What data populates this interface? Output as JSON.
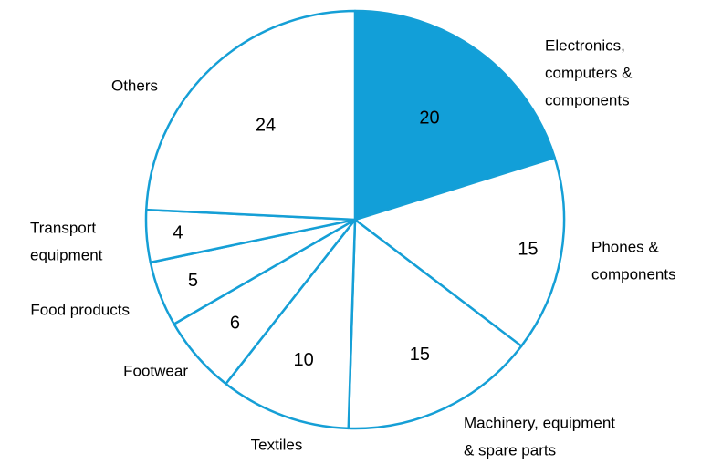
{
  "chart_data": {
    "type": "pie",
    "title": "",
    "categories": [
      "Electronics, computers & components",
      "Phones & components",
      "Machinery, equipment & spare parts",
      "Textiles",
      "Footwear",
      "Food products",
      "Transport equipment",
      "Others"
    ],
    "values": [
      20,
      15,
      15,
      10,
      6,
      5,
      4,
      24
    ],
    "highlighted": "Electronics, computers & components",
    "label_lines": [
      [
        "Electronics,",
        "computers &",
        "components"
      ],
      [
        "Phones &",
        "components"
      ],
      [
        "Machinery, equipment",
        "& spare parts"
      ],
      [
        "Textiles"
      ],
      [
        "Footwear"
      ],
      [
        "Food products"
      ],
      [
        "Transport",
        "equipment"
      ],
      [
        "Others"
      ]
    ],
    "colors": {
      "highlight_fill": "#129fd8",
      "slice_fill": "#ffffff",
      "stroke": "#159fd6"
    }
  }
}
